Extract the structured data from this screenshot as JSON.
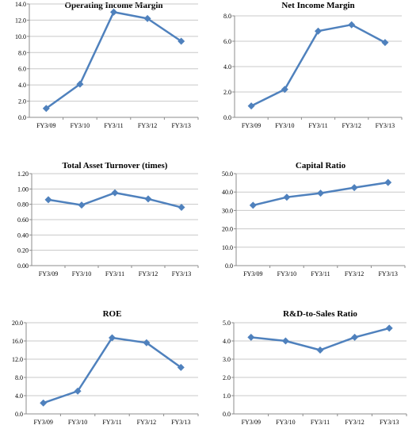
{
  "colors": {
    "series": "#4f81bd",
    "marker": "#4f81bd"
  },
  "chart_data": [
    {
      "type": "line",
      "title": "Operating Income Margin",
      "categories": [
        "FY3/09",
        "FY3/10",
        "FY3/11",
        "FY3/12",
        "FY3/13"
      ],
      "values": [
        1.1,
        4.1,
        13.0,
        12.2,
        9.4
      ],
      "ylim": [
        0,
        14
      ],
      "yticks": [
        "0.0",
        "2.0",
        "4.0",
        "6.0",
        "8.0",
        "10.0",
        "12.0",
        "14.0"
      ],
      "grid": true
    },
    {
      "type": "line",
      "title": "Net Income Margin",
      "categories": [
        "FY3/09",
        "FY3/10",
        "FY3/11",
        "FY3/12",
        "FY3/13"
      ],
      "values": [
        0.9,
        2.2,
        6.8,
        7.3,
        5.9
      ],
      "ylim": [
        0,
        8
      ],
      "yticks": [
        "0.0",
        "2.0",
        "4.0",
        "6.0",
        "8.0"
      ],
      "grid": true
    },
    {
      "type": "line",
      "title": "Total Asset Turnover (times)",
      "categories": [
        "FY3/09",
        "FY3/10",
        "FY3/11",
        "FY3/12",
        "FY3/13"
      ],
      "values": [
        0.86,
        0.79,
        0.95,
        0.87,
        0.76
      ],
      "ylim": [
        0,
        1.2
      ],
      "yticks": [
        "0.00",
        "0.20",
        "0.40",
        "0.60",
        "0.80",
        "1.00",
        "1.20"
      ],
      "grid": true
    },
    {
      "type": "line",
      "title": "Capital Ratio",
      "categories": [
        "FY3/09",
        "FY3/10",
        "FY3/11",
        "FY3/12",
        "FY3/13"
      ],
      "values": [
        32.8,
        37.2,
        39.4,
        42.4,
        45.2
      ],
      "ylim": [
        0,
        50
      ],
      "yticks": [
        "0.0",
        "10.0",
        "20.0",
        "30.0",
        "40.0",
        "50.0"
      ],
      "grid": true
    },
    {
      "type": "line",
      "title": "ROE",
      "categories": [
        "FY3/09",
        "FY3/10",
        "FY3/11",
        "FY3/12",
        "FY3/13"
      ],
      "values": [
        2.4,
        5.0,
        16.7,
        15.6,
        10.2
      ],
      "ylim": [
        0,
        20
      ],
      "yticks": [
        "0.0",
        "4.0",
        "8.0",
        "12.0",
        "16.0",
        "20.0"
      ],
      "grid": true
    },
    {
      "type": "line",
      "title": "R&D-to-Sales Ratio",
      "categories": [
        "FY3/09",
        "FY3/10",
        "FY3/11",
        "FY3/12",
        "FY3/13"
      ],
      "values": [
        4.2,
        4.0,
        3.5,
        4.2,
        4.7
      ],
      "ylim": [
        0,
        5
      ],
      "yticks": [
        "0.0",
        "1.0",
        "2.0",
        "3.0",
        "4.0",
        "5.0"
      ],
      "grid": true
    }
  ]
}
